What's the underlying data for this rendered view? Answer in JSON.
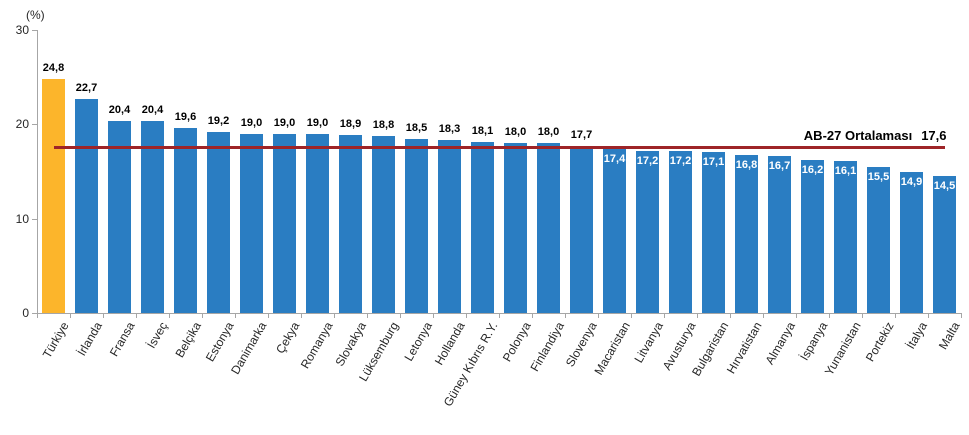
{
  "chart_data": {
    "type": "bar",
    "title": "",
    "unit_label": "(%)",
    "categories": [
      "Türkiye",
      "İrlanda",
      "Fransa",
      "İsveç",
      "Belçika",
      "Estonya",
      "Danimarka",
      "Çekya",
      "Romanya",
      "Slovakya",
      "Lüksemburg",
      "Letonya",
      "Hollanda",
      "Güney Kıbrıs R.Y.",
      "Polonya",
      "Finlandiya",
      "Slovenya",
      "Macaristan",
      "Litvanya",
      "Avusturya",
      "Bulgaristan",
      "Hırvatistan",
      "Almanya",
      "İspanya",
      "Yunanistan",
      "Portekiz",
      "İtalya",
      "Malta"
    ],
    "values": [
      24.8,
      22.7,
      20.4,
      20.4,
      19.6,
      19.2,
      19.0,
      19.0,
      19.0,
      18.9,
      18.8,
      18.5,
      18.3,
      18.1,
      18.0,
      18.0,
      17.7,
      17.4,
      17.2,
      17.2,
      17.1,
      16.8,
      16.7,
      16.2,
      16.1,
      15.5,
      14.9,
      14.5
    ],
    "value_labels": [
      "24,8",
      "22,7",
      "20,4",
      "20,4",
      "19,6",
      "19,2",
      "19,0",
      "19,0",
      "19,0",
      "18,9",
      "18,8",
      "18,5",
      "18,3",
      "18,1",
      "18,0",
      "18,0",
      "17,7",
      "17,4",
      "17,2",
      "17,2",
      "17,1",
      "16,8",
      "16,7",
      "16,2",
      "16,1",
      "15,5",
      "14,9",
      "14,5"
    ],
    "highlighted_category": "Türkiye",
    "highlight_index": 0,
    "ylim": [
      0,
      30
    ],
    "yticks": [
      0,
      10,
      20,
      30
    ],
    "ytick_labels": [
      "0",
      "10",
      "20",
      "30"
    ],
    "grid": false,
    "legend": "none",
    "average_line": {
      "label": "AB-27 Ortalaması",
      "value": 17.6,
      "value_display": "17,6"
    },
    "colors": {
      "bar": "#2A7DC2",
      "highlight_bar": "#FCB52B",
      "average_line": "#9E2428",
      "axis": "#A6A6A6",
      "value_label": "#000000",
      "value_label_inside": "#FFFFFF"
    }
  }
}
